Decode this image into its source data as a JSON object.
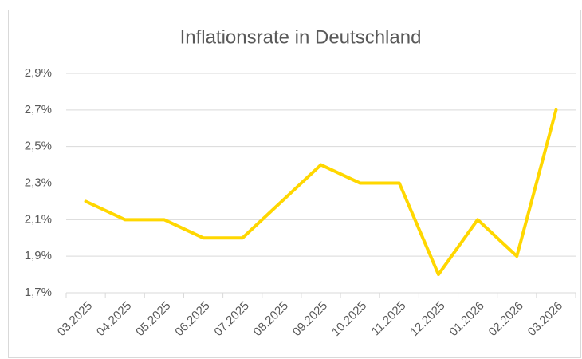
{
  "chart_data": {
    "type": "line",
    "title": "Inflationsrate in Deutschland",
    "categories": [
      "03.2025",
      "04.2025",
      "05.2025",
      "06.2025",
      "07.2025",
      "08.2025",
      "09.2025",
      "10.2025",
      "11.2025",
      "12.2025",
      "01.2026",
      "02.2026",
      "03.2026"
    ],
    "values": [
      2.2,
      2.1,
      2.1,
      2.0,
      2.0,
      2.2,
      2.4,
      2.3,
      2.3,
      1.8,
      2.1,
      1.9,
      2.7
    ],
    "color": "#FFD700",
    "ylim": [
      1.7,
      2.9
    ],
    "yticks": [
      {
        "value": 1.7,
        "label": "1,7%"
      },
      {
        "value": 1.9,
        "label": "1,9%"
      },
      {
        "value": 2.1,
        "label": "2,1%"
      },
      {
        "value": 2.3,
        "label": "2,3%"
      },
      {
        "value": 2.5,
        "label": "2,5%"
      },
      {
        "value": 2.7,
        "label": "2,7%"
      },
      {
        "value": 2.9,
        "label": "2,9%"
      }
    ],
    "grid": true
  }
}
